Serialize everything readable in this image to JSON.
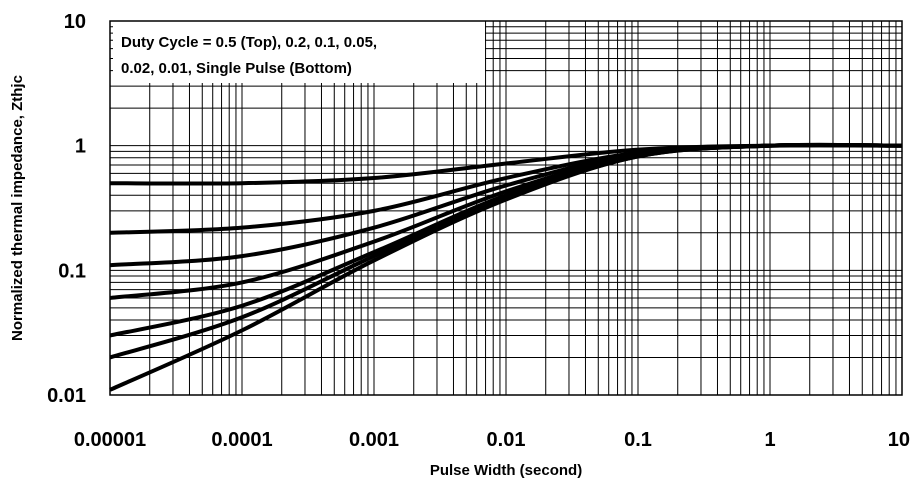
{
  "chart_data": {
    "type": "line",
    "title": "",
    "xlabel": "Pulse Width (second)",
    "ylabel": "Normalized thermal impedance, Zthjc",
    "xscale": "log",
    "yscale": "log",
    "xlim": [
      1e-05,
      10
    ],
    "ylim": [
      0.01,
      10
    ],
    "grid": true,
    "x_tick_labels": [
      "0.00001",
      "0.0001",
      "0.001",
      "0.01",
      "0.1",
      "1",
      "10"
    ],
    "y_tick_labels": [
      "0.01",
      "0.1",
      "1",
      "10"
    ],
    "annotation": {
      "line1": "Duty Cycle = 0.5 (Top), 0.2, 0.1, 0.05,",
      "line2": "0.02, 0.01, Single Pulse (Bottom)",
      "placement": "top-left"
    },
    "line_color": "#000000",
    "series": [
      {
        "x": [
          1e-05,
          0.0001,
          0.001,
          0.01,
          0.1,
          1,
          10
        ],
        "y": [
          0.5,
          0.5,
          0.55,
          0.72,
          0.93,
          1.0,
          1.0
        ]
      },
      {
        "x": [
          1e-05,
          0.0001,
          0.001,
          0.01,
          0.1,
          1,
          10
        ],
        "y": [
          0.2,
          0.22,
          0.3,
          0.55,
          0.88,
          1.0,
          1.0
        ]
      },
      {
        "x": [
          1e-05,
          0.0001,
          0.001,
          0.01,
          0.1,
          1,
          10
        ],
        "y": [
          0.11,
          0.13,
          0.22,
          0.48,
          0.86,
          1.0,
          1.0
        ]
      },
      {
        "x": [
          1e-05,
          0.0001,
          0.001,
          0.01,
          0.1,
          1,
          10
        ],
        "y": [
          0.06,
          0.08,
          0.17,
          0.43,
          0.84,
          1.0,
          1.0
        ]
      },
      {
        "x": [
          1e-05,
          0.0001,
          0.001,
          0.01,
          0.1,
          1,
          10
        ],
        "y": [
          0.03,
          0.052,
          0.14,
          0.4,
          0.83,
          1.0,
          1.0
        ]
      },
      {
        "x": [
          1e-05,
          0.0001,
          0.001,
          0.01,
          0.1,
          1,
          10
        ],
        "y": [
          0.02,
          0.042,
          0.13,
          0.38,
          0.82,
          1.0,
          1.0
        ]
      },
      {
        "x": [
          1e-05,
          0.0001,
          0.001,
          0.01,
          0.1,
          1,
          10
        ],
        "y": [
          0.011,
          0.033,
          0.12,
          0.37,
          0.82,
          1.0,
          1.0
        ]
      }
    ]
  }
}
